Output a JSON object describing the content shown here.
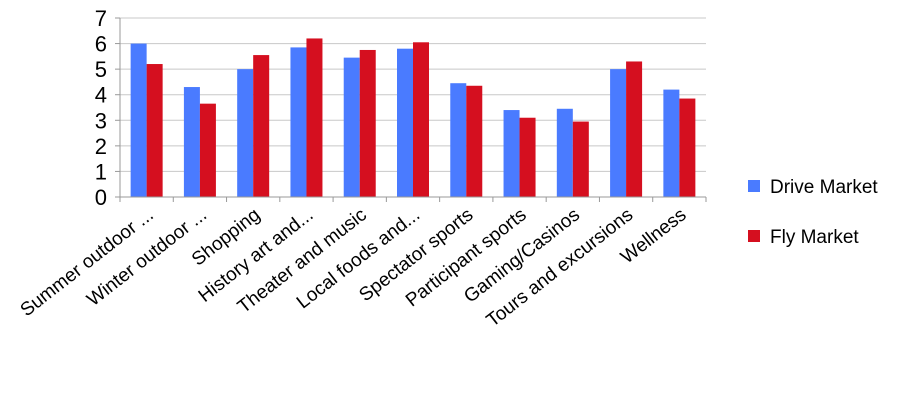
{
  "chart_data": {
    "type": "bar",
    "categories": [
      "Summer outdoor ...",
      "Winter outdoor ...",
      "Shopping",
      "History art and...",
      "Theater and music",
      "Local foods and...",
      "Spectator sports",
      "Participant sports",
      "Gaming/Casinos",
      "Tours and excursions",
      "Wellness"
    ],
    "series": [
      {
        "name": "Drive Market",
        "color": "#4a7bff",
        "values": [
          6.0,
          4.3,
          5.0,
          5.85,
          5.45,
          5.8,
          4.45,
          3.4,
          3.45,
          5.0,
          4.2
        ]
      },
      {
        "name": "Fly Market",
        "color": "#d50f1f",
        "values": [
          5.2,
          3.65,
          5.55,
          6.2,
          5.75,
          6.05,
          4.35,
          3.1,
          2.95,
          5.3,
          3.85
        ]
      }
    ],
    "yticks": [
      "0",
      "1",
      "2",
      "3",
      "4",
      "5",
      "6",
      "7"
    ],
    "ylim": [
      0,
      7
    ],
    "grid": true,
    "legend_position": "right"
  }
}
